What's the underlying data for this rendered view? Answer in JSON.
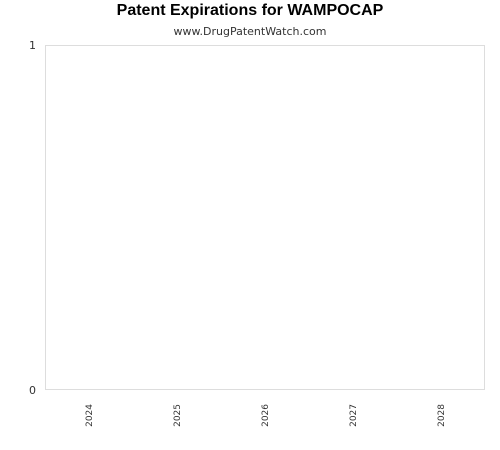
{
  "header": {
    "title": "Patent Expirations for WAMPOCAP",
    "subtitle": "www.DrugPatentWatch.com"
  },
  "chart_data": {
    "type": "bar",
    "title": "Patent Expirations for WAMPOCAP",
    "subtitle": "www.DrugPatentWatch.com",
    "categories": [
      "2024",
      "2025",
      "2026",
      "2027",
      "2028"
    ],
    "values": [
      0,
      0,
      0,
      0,
      0
    ],
    "ylim": [
      0,
      1
    ],
    "yticks": [
      0,
      1
    ],
    "xlabel": "",
    "ylabel": "",
    "grid": false,
    "legend": "none",
    "colors": {
      "plot_border": "#dddddd",
      "bar": "#4a7fb5",
      "text": "#333333"
    }
  }
}
